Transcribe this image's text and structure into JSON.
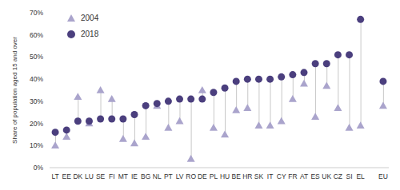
{
  "chart_data": {
    "type": "dot",
    "y_label": "Share of population aged 15 and over",
    "categories": [
      "LT",
      "EE",
      "DK",
      "LU",
      "SE",
      "FI",
      "MT",
      "IE",
      "BG",
      "NL",
      "PT",
      "LV",
      "RO",
      "DE",
      "PL",
      "HU",
      "BE",
      "HR",
      "SK",
      "IT",
      "CY",
      "FR",
      "AT",
      "ES",
      "UK",
      "CZ",
      "SI",
      "EL",
      null,
      "EU"
    ],
    "series": [
      {
        "name": "2004",
        "color": "#aaa4cc",
        "marker": "triangle",
        "values": [
          10,
          14,
          32,
          20,
          35,
          31,
          13,
          11,
          14,
          28,
          18,
          21,
          4,
          35,
          18,
          15,
          26,
          27,
          19,
          19,
          21,
          31,
          38,
          23,
          37,
          27,
          18,
          19,
          null,
          28
        ]
      },
      {
        "name": "2018",
        "color": "#4b3f7e",
        "marker": "circle",
        "values": [
          16,
          17,
          21,
          21,
          22,
          22,
          22,
          24,
          28,
          29,
          30,
          31,
          31,
          31,
          34,
          36,
          39,
          40,
          40,
          40,
          41,
          42,
          43,
          47,
          47,
          51,
          51,
          67,
          null,
          39
        ]
      }
    ],
    "ylim": [
      0,
      70
    ],
    "yticks": [
      {
        "value": 0,
        "label": "0%"
      },
      {
        "value": 10,
        "label": "10%"
      },
      {
        "value": 20,
        "label": "20%"
      },
      {
        "value": 30,
        "label": "30%"
      },
      {
        "value": 40,
        "label": "40%"
      },
      {
        "value": 50,
        "label": "50%"
      },
      {
        "value": 60,
        "label": "60%"
      },
      {
        "value": 70,
        "label": "70%"
      }
    ],
    "grid": false,
    "legend": "upper left"
  }
}
